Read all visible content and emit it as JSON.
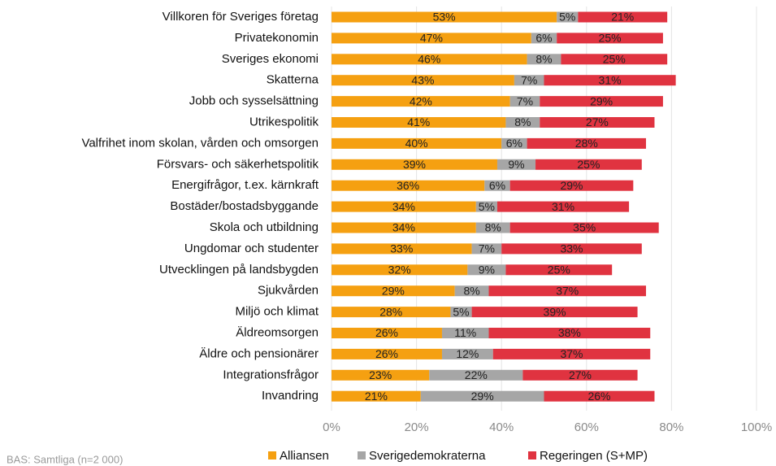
{
  "chart_data": {
    "type": "stacked_barh",
    "categories": [
      "Villkoren för Sveriges företag",
      "Privatekonomin",
      "Sveriges ekonomi",
      "Skatterna",
      "Jobb och sysselsättning",
      "Utrikespolitik",
      "Valfrihet inom skolan, vården och omsorgen",
      "Försvars- och säkerhetspolitik",
      "Energifrågor, t.ex. kärnkraft",
      "Bostäder/bostadsbyggande",
      "Skola och utbildning",
      "Ungdomar och studenter",
      "Utvecklingen på landsbygden",
      "Sjukvården",
      "Miljö och klimat",
      "Äldreomsorgen",
      "Äldre och pensionärer",
      "Integrationsfrågor",
      "Invandring"
    ],
    "series": [
      {
        "name": "Alliansen",
        "color": "#f5a011",
        "values": [
          53,
          47,
          46,
          43,
          42,
          41,
          40,
          39,
          36,
          34,
          34,
          33,
          32,
          29,
          28,
          26,
          26,
          23,
          21
        ],
        "value_labels": [
          "53%",
          "47%",
          "46%",
          "43%",
          "42%",
          "41%",
          "40%",
          "39%",
          "36%",
          "34%",
          "34%",
          "33%",
          "32%",
          "29%",
          "28%",
          "26%",
          "26%",
          "23%",
          "21%"
        ]
      },
      {
        "name": "Sverigedemokraterna",
        "color": "#a6a6a6",
        "values": [
          5,
          6,
          8,
          7,
          7,
          8,
          6,
          9,
          6,
          5,
          8,
          7,
          9,
          8,
          5,
          11,
          12,
          22,
          29
        ],
        "value_labels": [
          "5%",
          "6%",
          "8%",
          "7%",
          "7%",
          "8%",
          "6%",
          "9%",
          "6%",
          "5%",
          "8%",
          "7%",
          "9%",
          "8%",
          "5%",
          "11%",
          "12%",
          "22%",
          "29%"
        ]
      },
      {
        "name": "Regeringen (S+MP)",
        "color": "#e03340",
        "values": [
          21,
          25,
          25,
          31,
          29,
          27,
          28,
          25,
          29,
          31,
          35,
          33,
          25,
          37,
          39,
          38,
          37,
          27,
          26
        ],
        "value_labels": [
          "21%",
          "25%",
          "25%",
          "31%",
          "29%",
          "27%",
          "28%",
          "25%",
          "29%",
          "31%",
          "35%",
          "33%",
          "25%",
          "37%",
          "39%",
          "38%",
          "37%",
          "27%",
          "26%"
        ]
      }
    ],
    "xlim": [
      0,
      100
    ],
    "xticks": [
      {
        "value": 0,
        "label": "0%"
      },
      {
        "value": 20,
        "label": "20%"
      },
      {
        "value": 40,
        "label": "40%"
      },
      {
        "value": 60,
        "label": "60%"
      },
      {
        "value": 80,
        "label": "80%"
      },
      {
        "value": 100,
        "label": "100%"
      }
    ],
    "grid": true,
    "legend": "bottom",
    "footnote": "BAS: Samtliga (n=2 000)"
  }
}
